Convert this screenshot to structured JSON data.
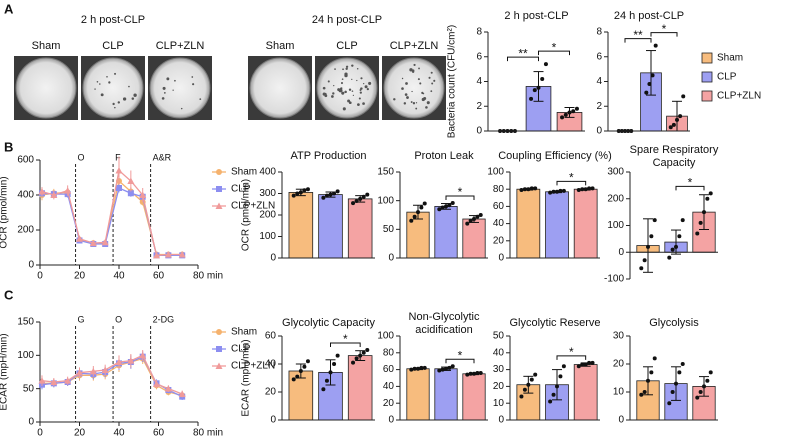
{
  "panel_labels": [
    "A",
    "B",
    "C"
  ],
  "plates": [
    {
      "title": "2 h post-CLP",
      "labels": [
        "Sham",
        "CLP",
        "CLP+ZLN"
      ]
    },
    {
      "title": "24 h post-CLP",
      "labels": [
        "Sham",
        "CLP",
        "CLP+ZLN"
      ]
    }
  ],
  "legend": [
    {
      "name": "Sham",
      "color": "#f7bc7e"
    },
    {
      "name": "CLP",
      "color": "#9d9ff2"
    },
    {
      "name": "CLP+ZLN",
      "color": "#f4a3a3"
    }
  ],
  "chart_data": [
    {
      "type": "bar",
      "title": "2 h post-CLP",
      "ylabel": "Bacteria count (CFU/cm²)",
      "ylim": [
        0,
        8
      ],
      "yticks": [
        0,
        2,
        4,
        6,
        8
      ],
      "colors": [
        "#f7bc7e",
        "#9d9ff2",
        "#f4a3a3"
      ],
      "values": [
        0,
        3.6,
        1.5
      ],
      "errors": [
        0,
        1.2,
        0.4
      ],
      "points": [
        [
          0,
          0,
          0,
          0,
          0
        ],
        [
          2.6,
          3.3,
          3.5,
          4.2,
          5.4
        ],
        [
          1.1,
          1.3,
          1.5,
          1.6,
          1.8
        ]
      ],
      "significance": [
        {
          "pair": [
            0,
            1
          ],
          "label": "**"
        },
        {
          "pair": [
            1,
            2
          ],
          "label": "*"
        }
      ]
    },
    {
      "type": "bar",
      "title": "24 h post-CLP",
      "ylim": [
        0,
        8
      ],
      "yticks": [
        0,
        2,
        4,
        6,
        8
      ],
      "colors": [
        "#f7bc7e",
        "#9d9ff2",
        "#f4a3a3"
      ],
      "values": [
        0,
        4.7,
        1.2
      ],
      "errors": [
        0,
        1.8,
        1.2
      ],
      "points": [
        [
          0,
          0,
          0,
          0,
          0
        ],
        [
          3.1,
          3.8,
          4.5,
          6.9
        ],
        [
          0.3,
          0.5,
          0.9,
          1.2,
          2.8
        ]
      ],
      "significance": [
        {
          "pair": [
            0,
            1
          ],
          "label": "**"
        },
        {
          "pair": [
            1,
            2
          ],
          "label": "*"
        }
      ]
    },
    {
      "type": "line",
      "ylabel": "OCR (pmol/min)",
      "xlim": [
        0,
        80
      ],
      "xticks": [
        0,
        20,
        40,
        60,
        {
          "value": 80,
          "label": "80 min"
        }
      ],
      "ylim": [
        0,
        600
      ],
      "yticks": [
        0,
        200,
        400,
        600
      ],
      "markers": [
        {
          "x": 18,
          "label": "O"
        },
        {
          "x": 37,
          "label": "F"
        },
        {
          "x": 56,
          "label": "A&R"
        }
      ],
      "x": [
        1,
        7,
        14,
        20,
        27,
        33,
        40,
        46,
        52,
        59,
        65,
        72
      ],
      "series": [
        {
          "name": "Sham",
          "color": "#f5b26e",
          "values": [
            400,
            410,
            415,
            145,
            125,
            125,
            480,
            420,
            360,
            60,
            60,
            60
          ],
          "errors": [
            30,
            25,
            25,
            15,
            10,
            10,
            30,
            25,
            20,
            8,
            8,
            8
          ]
        },
        {
          "name": "CLP",
          "color": "#8c8ef0",
          "values": [
            410,
            405,
            405,
            140,
            120,
            120,
            440,
            410,
            390,
            55,
            55,
            55
          ],
          "errors": [
            20,
            20,
            20,
            10,
            10,
            10,
            25,
            20,
            20,
            5,
            5,
            5
          ]
        },
        {
          "name": "CLP+ZLN",
          "color": "#f09a9a",
          "values": [
            420,
            400,
            425,
            150,
            125,
            130,
            540,
            480,
            400,
            55,
            60,
            60
          ],
          "errors": [
            25,
            25,
            30,
            15,
            10,
            10,
            80,
            60,
            40,
            8,
            8,
            8
          ]
        }
      ]
    },
    {
      "type": "bar",
      "title": "ATP Production",
      "ylabel": "OCR (pmol/min)",
      "ylim": [
        0,
        400
      ],
      "yticks": [
        0,
        100,
        200,
        300,
        400
      ],
      "colors": [
        "#f7bc7e",
        "#9d9ff2",
        "#f4a3a3"
      ],
      "values": [
        305,
        295,
        275
      ],
      "errors": [
        15,
        12,
        15
      ],
      "points": [
        [
          290,
          300,
          305,
          315,
          320
        ],
        [
          280,
          290,
          295,
          300,
          310
        ],
        [
          255,
          265,
          275,
          285,
          295
        ]
      ],
      "significance": []
    },
    {
      "type": "bar",
      "title": "Proton Leak",
      "ylim": [
        0,
        150
      ],
      "yticks": [
        0,
        50,
        100,
        150
      ],
      "colors": [
        "#f7bc7e",
        "#9d9ff2",
        "#f4a3a3"
      ],
      "values": [
        80,
        90,
        68
      ],
      "errors": [
        12,
        5,
        6
      ],
      "points": [
        [
          65,
          72,
          80,
          88,
          95
        ],
        [
          85,
          88,
          90,
          92,
          96
        ],
        [
          60,
          65,
          68,
          72,
          75
        ]
      ],
      "significance": [
        {
          "pair": [
            1,
            2
          ],
          "label": "*"
        }
      ]
    },
    {
      "type": "bar",
      "title": "Coupling Efficiency (%)",
      "ylim": [
        0,
        100
      ],
      "yticks": [
        0,
        20,
        40,
        60,
        80,
        100
      ],
      "colors": [
        "#f7bc7e",
        "#9d9ff2",
        "#f4a3a3"
      ],
      "values": [
        80,
        77,
        80
      ],
      "errors": [
        1,
        1,
        1
      ],
      "points": [
        [
          79,
          80,
          80,
          81,
          81
        ],
        [
          76,
          77,
          77,
          78,
          78
        ],
        [
          79,
          80,
          80,
          81,
          81
        ]
      ],
      "significance": [
        {
          "pair": [
            1,
            2
          ],
          "label": "*"
        }
      ]
    },
    {
      "type": "bar",
      "title": [
        "Spare Respiratory",
        "Capacity"
      ],
      "ylim": [
        -100,
        300
      ],
      "yticks": [
        -100,
        0,
        100,
        200,
        300
      ],
      "colors": [
        "#f7bc7e",
        "#9d9ff2",
        "#f4a3a3"
      ],
      "values": [
        25,
        38,
        150
      ],
      "errors": [
        100,
        45,
        65
      ],
      "points": [
        [
          -60,
          -30,
          20,
          60,
          120
        ],
        [
          -20,
          10,
          20,
          60,
          120
        ],
        [
          70,
          110,
          150,
          200,
          220
        ]
      ],
      "significance": [
        {
          "pair": [
            1,
            2
          ],
          "label": "*"
        }
      ]
    },
    {
      "type": "line",
      "ylabel": "ECAR (mpH/min)",
      "xlim": [
        0,
        80
      ],
      "xticks": [
        0,
        20,
        40,
        60,
        {
          "value": 80,
          "label": "80 min"
        }
      ],
      "ylim": [
        0,
        150
      ],
      "yticks": [
        0,
        50,
        100,
        150
      ],
      "markers": [
        {
          "x": 18,
          "label": "G"
        },
        {
          "x": 37,
          "label": "O"
        },
        {
          "x": 56,
          "label": "2-DG"
        }
      ],
      "x": [
        1,
        7,
        14,
        20,
        27,
        33,
        40,
        46,
        52,
        59,
        65,
        72
      ],
      "series": [
        {
          "name": "Sham",
          "color": "#f5b26e",
          "values": [
            58,
            58,
            60,
            70,
            70,
            72,
            85,
            90,
            95,
            55,
            45,
            40
          ],
          "errors": [
            8,
            6,
            6,
            8,
            8,
            8,
            10,
            10,
            8,
            6,
            5,
            5
          ]
        },
        {
          "name": "CLP",
          "color": "#8c8ef0",
          "values": [
            56,
            58,
            60,
            73,
            72,
            75,
            88,
            90,
            98,
            58,
            48,
            38
          ],
          "errors": [
            7,
            6,
            6,
            8,
            8,
            8,
            10,
            10,
            8,
            6,
            5,
            5
          ]
        },
        {
          "name": "CLP+ZLN",
          "color": "#f09a9a",
          "values": [
            62,
            60,
            62,
            74,
            76,
            78,
            90,
            92,
            100,
            57,
            50,
            42
          ],
          "errors": [
            8,
            6,
            6,
            8,
            8,
            8,
            10,
            10,
            8,
            6,
            5,
            5
          ]
        }
      ]
    },
    {
      "type": "bar",
      "title": "Glycolytic Capacity",
      "ylabel": "ECAR (mpH/min)",
      "ylim": [
        0,
        60
      ],
      "yticks": [
        0,
        20,
        40,
        60
      ],
      "colors": [
        "#f7bc7e",
        "#9d9ff2",
        "#f4a3a3"
      ],
      "values": [
        35,
        34,
        46
      ],
      "errors": [
        5,
        9,
        3.5
      ],
      "points": [
        [
          29,
          31,
          35,
          38,
          42
        ],
        [
          22,
          28,
          34,
          40,
          46
        ],
        [
          41,
          44,
          46,
          48,
          50
        ]
      ],
      "significance": [
        {
          "pair": [
            1,
            2
          ],
          "label": "*"
        }
      ]
    },
    {
      "type": "bar",
      "title": [
        "Non-Glycolytic",
        "acidification"
      ],
      "ylim": [
        0,
        100
      ],
      "yticks": [
        0,
        20,
        40,
        60,
        80,
        100
      ],
      "colors": [
        "#f7bc7e",
        "#9d9ff2",
        "#f4a3a3"
      ],
      "values": [
        61,
        61,
        55
      ],
      "errors": [
        1,
        2,
        1
      ],
      "points": [
        [
          60,
          61,
          61,
          62,
          62
        ],
        [
          59,
          60,
          61,
          62,
          64
        ],
        [
          54,
          55,
          55,
          56,
          56
        ]
      ],
      "significance": [
        {
          "pair": [
            1,
            2
          ],
          "label": "*"
        }
      ]
    },
    {
      "type": "bar",
      "title": "Glycolytic Reserve",
      "ylim": [
        0,
        50
      ],
      "yticks": [
        0,
        10,
        20,
        30,
        40,
        50
      ],
      "colors": [
        "#f7bc7e",
        "#9d9ff2",
        "#f4a3a3"
      ],
      "values": [
        21,
        21,
        33
      ],
      "errors": [
        5,
        9,
        1
      ],
      "points": [
        [
          14,
          18,
          21,
          24,
          27
        ],
        [
          11,
          15,
          20,
          26,
          32
        ],
        [
          32,
          33,
          33,
          34,
          34
        ]
      ],
      "significance": [
        {
          "pair": [
            1,
            2
          ],
          "label": "*"
        }
      ]
    },
    {
      "type": "bar",
      "title": "Glycolysis",
      "ylim": [
        0,
        30
      ],
      "yticks": [
        0,
        10,
        20,
        30
      ],
      "colors": [
        "#f7bc7e",
        "#9d9ff2",
        "#f4a3a3"
      ],
      "values": [
        14,
        13,
        12
      ],
      "errors": [
        5,
        6,
        3.5
      ],
      "points": [
        [
          9,
          10,
          14,
          17,
          22
        ],
        [
          6,
          10,
          13,
          17,
          20
        ],
        [
          8,
          10,
          12,
          14,
          17
        ]
      ],
      "significance": []
    }
  ]
}
